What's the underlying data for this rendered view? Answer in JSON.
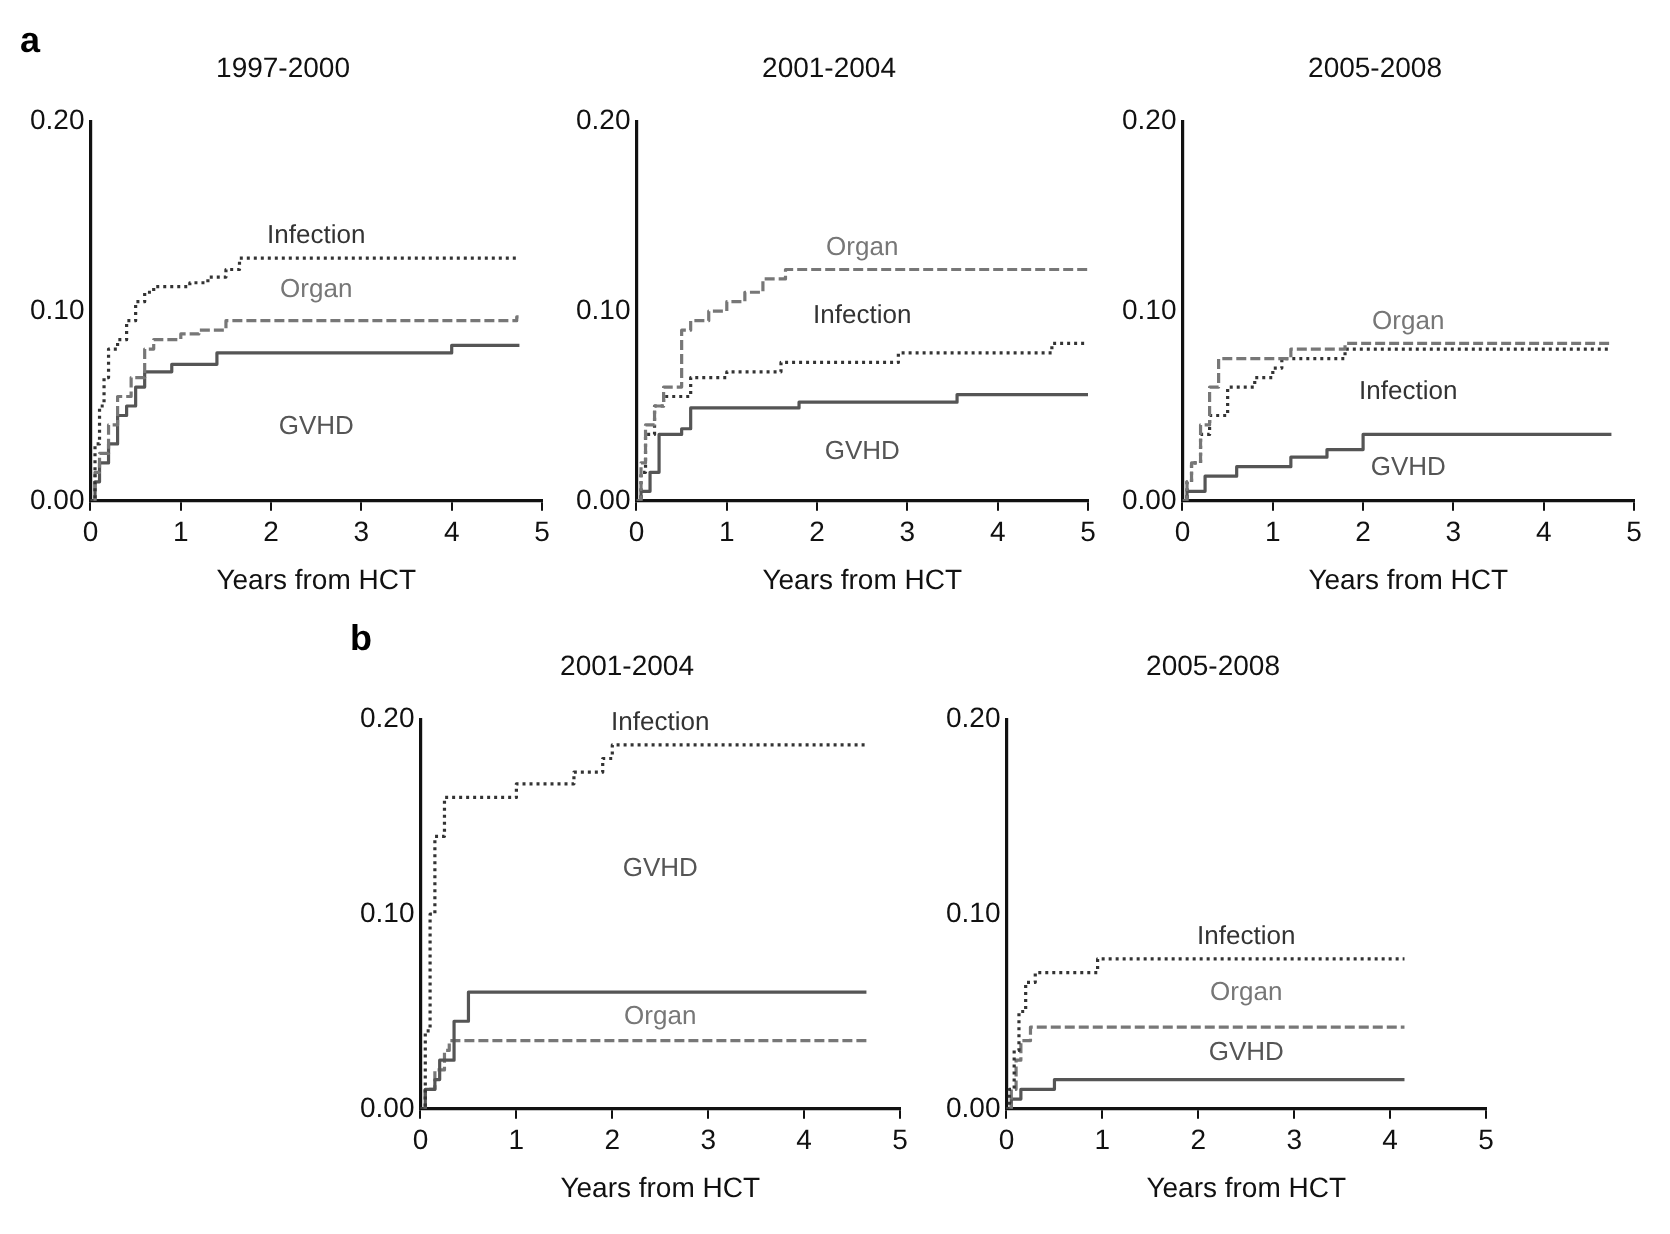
{
  "chart_data": [
    {
      "type": "step",
      "title": "1997-2000",
      "xlabel": "Years from HCT",
      "annotations": [
        "a"
      ],
      "xlim": [
        0,
        5
      ],
      "xticks": [
        0,
        1,
        2,
        3,
        4,
        5
      ],
      "ylim": [
        0,
        0.2
      ],
      "yticks": [
        {
          "value": 0,
          "label": "0.00"
        },
        {
          "value": 0.1,
          "label": "0.10"
        },
        {
          "value": 0.2,
          "label": "0.20"
        }
      ],
      "grid": false,
      "legend": false,
      "series": [
        {
          "name": "Infection",
          "color": "#333333",
          "line_style": "dotted",
          "x": [
            0,
            0.05,
            0.1,
            0.15,
            0.2,
            0.3,
            0.4,
            0.5,
            0.6,
            0.7,
            1.1,
            1.3,
            1.5,
            1.65,
            4.75
          ],
          "values": [
            0,
            0.03,
            0.05,
            0.065,
            0.08,
            0.085,
            0.095,
            0.105,
            0.11,
            0.113,
            0.115,
            0.118,
            0.122,
            0.128,
            0.128
          ]
        },
        {
          "name": "Organ",
          "color": "#777777",
          "line_style": "dashed",
          "x": [
            0,
            0.05,
            0.1,
            0.2,
            0.3,
            0.45,
            0.6,
            0.7,
            1.0,
            1.2,
            1.5,
            4.72,
            4.75
          ],
          "values": [
            0,
            0.015,
            0.025,
            0.04,
            0.055,
            0.065,
            0.08,
            0.085,
            0.088,
            0.09,
            0.095,
            0.097,
            0.097
          ]
        },
        {
          "name": "GVHD",
          "color": "#555555",
          "line_style": "solid",
          "x": [
            0,
            0.05,
            0.1,
            0.2,
            0.3,
            0.4,
            0.5,
            0.6,
            0.9,
            1.4,
            4.0,
            4.75
          ],
          "values": [
            0,
            0.01,
            0.02,
            0.03,
            0.045,
            0.05,
            0.06,
            0.068,
            0.072,
            0.078,
            0.082,
            0.082
          ]
        }
      ]
    },
    {
      "type": "step",
      "title": "2001-2004",
      "xlabel": "Years from HCT",
      "xlim": [
        0,
        5
      ],
      "xticks": [
        0,
        1,
        2,
        3,
        4,
        5
      ],
      "ylim": [
        0,
        0.2
      ],
      "yticks": [
        {
          "value": 0,
          "label": "0.00"
        },
        {
          "value": 0.1,
          "label": "0.10"
        },
        {
          "value": 0.2,
          "label": "0.20"
        }
      ],
      "grid": false,
      "legend": false,
      "series": [
        {
          "name": "Organ",
          "color": "#777777",
          "line_style": "dashed",
          "x": [
            0,
            0.05,
            0.1,
            0.2,
            0.3,
            0.5,
            0.6,
            0.8,
            1.0,
            1.2,
            1.4,
            1.65,
            5
          ],
          "values": [
            0,
            0.02,
            0.04,
            0.05,
            0.06,
            0.09,
            0.095,
            0.1,
            0.105,
            0.11,
            0.117,
            0.122,
            0.122
          ]
        },
        {
          "name": "Infection",
          "color": "#333333",
          "line_style": "dotted",
          "x": [
            0,
            0.05,
            0.1,
            0.2,
            0.3,
            0.6,
            1.0,
            1.6,
            2.9,
            4.6,
            5
          ],
          "values": [
            0,
            0.015,
            0.035,
            0.05,
            0.055,
            0.065,
            0.068,
            0.073,
            0.078,
            0.083,
            0.083
          ]
        },
        {
          "name": "GVHD",
          "color": "#555555",
          "line_style": "solid",
          "x": [
            0,
            0.05,
            0.15,
            0.25,
            0.5,
            0.6,
            1.8,
            3.55,
            5
          ],
          "values": [
            0,
            0.005,
            0.015,
            0.035,
            0.038,
            0.049,
            0.052,
            0.056,
            0.056
          ]
        }
      ]
    },
    {
      "type": "step",
      "title": "2005-2008",
      "xlabel": "Years from HCT",
      "xlim": [
        0,
        5
      ],
      "xticks": [
        0,
        1,
        2,
        3,
        4,
        5
      ],
      "ylim": [
        0,
        0.2
      ],
      "yticks": [
        {
          "value": 0,
          "label": "0.00"
        },
        {
          "value": 0.1,
          "label": "0.10"
        },
        {
          "value": 0.2,
          "label": "0.20"
        }
      ],
      "grid": false,
      "legend": false,
      "series": [
        {
          "name": "Organ",
          "color": "#777777",
          "line_style": "dashed",
          "x": [
            0,
            0.05,
            0.1,
            0.2,
            0.3,
            0.4,
            1.2,
            1.8,
            4.75
          ],
          "values": [
            0,
            0.01,
            0.02,
            0.04,
            0.06,
            0.075,
            0.08,
            0.083,
            0.083
          ]
        },
        {
          "name": "Infection",
          "color": "#333333",
          "line_style": "dotted",
          "x": [
            0,
            0.05,
            0.1,
            0.2,
            0.3,
            0.5,
            0.8,
            1.0,
            1.1,
            1.8,
            4.75
          ],
          "values": [
            0,
            0.01,
            0.02,
            0.035,
            0.045,
            0.06,
            0.065,
            0.07,
            0.075,
            0.08,
            0.08
          ]
        },
        {
          "name": "GVHD",
          "color": "#555555",
          "line_style": "solid",
          "x": [
            0,
            0.05,
            0.25,
            0.6,
            1.2,
            1.6,
            2.0,
            4.75
          ],
          "values": [
            0,
            0.005,
            0.013,
            0.018,
            0.023,
            0.027,
            0.035,
            0.035
          ]
        }
      ]
    },
    {
      "type": "step",
      "title": "2001-2004",
      "xlabel": "Years from HCT",
      "annotations": [
        "b"
      ],
      "xlim": [
        0,
        5
      ],
      "xticks": [
        0,
        1,
        2,
        3,
        4,
        5
      ],
      "ylim": [
        0,
        0.2
      ],
      "yticks": [
        {
          "value": 0,
          "label": "0.00"
        },
        {
          "value": 0.1,
          "label": "0.10"
        },
        {
          "value": 0.2,
          "label": "0.20"
        }
      ],
      "grid": false,
      "legend": false,
      "series": [
        {
          "name": "Infection",
          "color": "#333333",
          "line_style": "dotted",
          "x": [
            0,
            0.05,
            0.1,
            0.15,
            0.25,
            1.0,
            1.6,
            1.9,
            2.0,
            4.65
          ],
          "values": [
            0,
            0.04,
            0.1,
            0.14,
            0.16,
            0.167,
            0.173,
            0.18,
            0.187,
            0.187
          ]
        },
        {
          "name": "GVHD",
          "color": "#555555",
          "line_style": "solid",
          "x": [
            0,
            0.05,
            0.15,
            0.2,
            0.35,
            0.5,
            4.65
          ],
          "values": [
            0,
            0.01,
            0.015,
            0.025,
            0.045,
            0.06,
            0.06
          ]
        },
        {
          "name": "Organ",
          "color": "#777777",
          "line_style": "dashed",
          "x": [
            0,
            0.05,
            0.15,
            0.25,
            0.3,
            4.65
          ],
          "values": [
            0,
            0.01,
            0.02,
            0.03,
            0.035,
            0.035
          ]
        }
      ]
    },
    {
      "type": "step",
      "title": "2005-2008",
      "xlabel": "Years from HCT",
      "xlim": [
        0,
        5
      ],
      "xticks": [
        0,
        1,
        2,
        3,
        4,
        5
      ],
      "ylim": [
        0,
        0.2
      ],
      "yticks": [
        {
          "value": 0,
          "label": "0.00"
        },
        {
          "value": 0.1,
          "label": "0.10"
        },
        {
          "value": 0.2,
          "label": "0.20"
        }
      ],
      "grid": false,
      "legend": false,
      "series": [
        {
          "name": "Infection",
          "color": "#333333",
          "line_style": "dotted",
          "x": [
            0,
            0.03,
            0.08,
            0.13,
            0.2,
            0.3,
            0.95,
            4.15
          ],
          "values": [
            0,
            0.01,
            0.03,
            0.05,
            0.065,
            0.07,
            0.077,
            0.077
          ]
        },
        {
          "name": "Organ",
          "color": "#777777",
          "line_style": "dashed",
          "x": [
            0,
            0.05,
            0.1,
            0.15,
            0.25,
            4.15
          ],
          "values": [
            0,
            0.01,
            0.025,
            0.035,
            0.042,
            0.042
          ]
        },
        {
          "name": "GVHD",
          "color": "#555555",
          "line_style": "solid",
          "x": [
            0,
            0.05,
            0.15,
            0.5,
            4.15
          ],
          "values": [
            0,
            0.005,
            0.01,
            0.015,
            0.015
          ]
        }
      ]
    }
  ]
}
